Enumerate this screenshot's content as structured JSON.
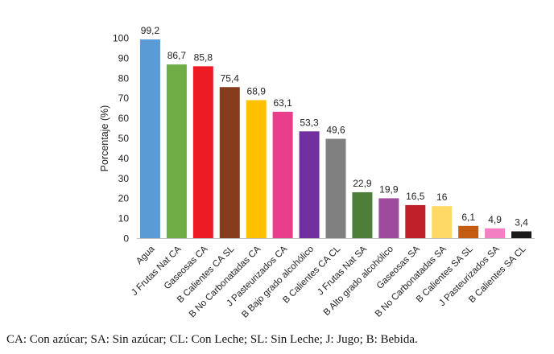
{
  "chart_data": {
    "type": "bar",
    "title": "",
    "xlabel": "",
    "ylabel": "Porcentaje (%)",
    "ylim": [
      0,
      100
    ],
    "yticks": [
      0,
      10,
      20,
      30,
      40,
      50,
      60,
      70,
      80,
      90,
      100
    ],
    "grid": false,
    "legend": "none",
    "categories": [
      "Agua",
      "J Frutas Nat CA",
      "Gaseosas CA",
      "B Calientes CA SL",
      "B No Carbonatadas CA",
      "J Pasteurizados CA",
      "B Bajo grado alcohólico",
      "B Calientes CA CL",
      "J Frutas Nat SA",
      "B Alto grado alcohólico",
      "Gaseosas SA",
      "B No Carbonatadas SA",
      "B Calientes SA SL",
      "J Pasteurizados SA",
      "B Calientes SA CL"
    ],
    "values": [
      99.2,
      86.7,
      85.8,
      75.4,
      68.9,
      63.1,
      53.3,
      49.6,
      22.9,
      19.9,
      16.5,
      16,
      6.1,
      4.9,
      3.4
    ],
    "value_labels": [
      "99,2",
      "86,7",
      "85,8",
      "75,4",
      "68,9",
      "63,1",
      "53,3",
      "49,6",
      "22,9",
      "19,9",
      "16,5",
      "16",
      "6,1",
      "4,9",
      "3,4"
    ],
    "colors": [
      "#5B9BD5",
      "#70AD47",
      "#ED1C24",
      "#843C1C",
      "#FFC000",
      "#E83E8C",
      "#7030A0",
      "#808080",
      "#4E7F3A",
      "#9E4B9E",
      "#C0202A",
      "#FFD966",
      "#C55A11",
      "#F47FC2",
      "#1A1A1A"
    ]
  },
  "footnote": "CA: Con azúcar; SA: Sin azúcar; CL: Con Leche; SL: Sin Leche; J: Jugo; B: Bebida."
}
